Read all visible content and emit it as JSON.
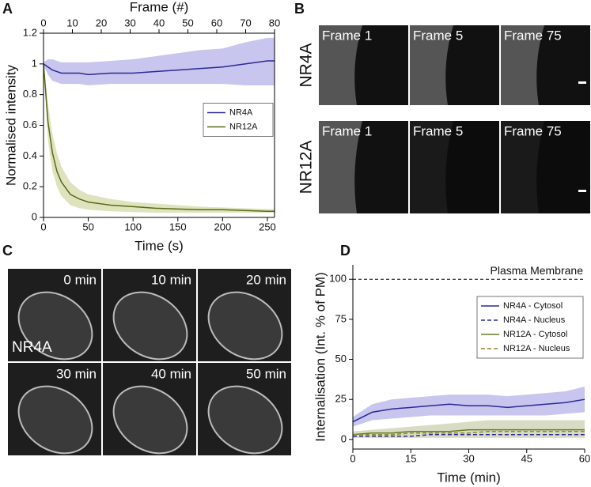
{
  "panel_labels": [
    "A",
    "B",
    "C",
    "D"
  ],
  "chart_data": [
    {
      "type": "line",
      "x_label": "Time (s)",
      "y_label": "Normalised intensity",
      "x2_label": "Frame (#)",
      "x": [
        0,
        5,
        10,
        15,
        20,
        30,
        40,
        50,
        75,
        100,
        125,
        150,
        175,
        200,
        225,
        250,
        258
      ],
      "xlim": [
        0,
        258
      ],
      "xticks": [
        0,
        50,
        100,
        150,
        200,
        250
      ],
      "x2lim": [
        0,
        80
      ],
      "x2ticks": [
        0,
        10,
        20,
        30,
        40,
        50,
        60,
        70,
        80
      ],
      "ylim": [
        0,
        1.2
      ],
      "yticks": [
        0,
        0.2,
        0.4,
        0.6,
        0.8,
        1,
        1.2
      ],
      "legend": "center right",
      "frame": true,
      "series": [
        {
          "name": "NR4A",
          "color": "#2a2a96",
          "band_color": "#c8c5ee",
          "dashed": false,
          "values": [
            1.0,
            0.98,
            0.96,
            0.95,
            0.94,
            0.94,
            0.94,
            0.93,
            0.94,
            0.94,
            0.95,
            0.96,
            0.97,
            0.98,
            1.0,
            1.02,
            1.02
          ],
          "lower": [
            0.99,
            0.93,
            0.89,
            0.88,
            0.87,
            0.87,
            0.87,
            0.86,
            0.87,
            0.87,
            0.87,
            0.87,
            0.87,
            0.87,
            0.86,
            0.86,
            0.86
          ],
          "upper": [
            1.01,
            1.03,
            1.03,
            1.02,
            1.01,
            1.01,
            1.01,
            1.01,
            1.02,
            1.03,
            1.05,
            1.07,
            1.09,
            1.1,
            1.14,
            1.17,
            1.17
          ]
        },
        {
          "name": "NR12A",
          "color": "#5a6a18",
          "band_color": "#dfe3bd",
          "dashed": false,
          "values": [
            1.0,
            0.62,
            0.42,
            0.3,
            0.23,
            0.15,
            0.12,
            0.1,
            0.08,
            0.07,
            0.06,
            0.055,
            0.05,
            0.05,
            0.045,
            0.04,
            0.04
          ],
          "lower": [
            0.99,
            0.5,
            0.3,
            0.2,
            0.14,
            0.08,
            0.06,
            0.05,
            0.04,
            0.035,
            0.03,
            0.03,
            0.03,
            0.03,
            0.03,
            0.03,
            0.03
          ],
          "upper": [
            1.01,
            0.74,
            0.54,
            0.42,
            0.33,
            0.23,
            0.18,
            0.15,
            0.12,
            0.1,
            0.09,
            0.08,
            0.07,
            0.065,
            0.06,
            0.055,
            0.055
          ]
        }
      ]
    },
    {
      "type": "line",
      "x_label": "Time (min)",
      "y_label": "Internalisation (Int. % of PM)",
      "x": [
        0,
        5,
        10,
        15,
        20,
        25,
        30,
        35,
        40,
        45,
        50,
        55,
        60
      ],
      "xlim": [
        0,
        60
      ],
      "xticks": [
        0,
        15,
        30,
        45,
        60
      ],
      "ylim": [
        -6,
        109
      ],
      "yticks": [
        0,
        25,
        50,
        75,
        100
      ],
      "legend": "upper right",
      "frame": false,
      "hline": {
        "value": 100,
        "label": "Plasma Membrane"
      },
      "series": [
        {
          "name": "NR4A - Cytosol",
          "color": "#2a2a96",
          "band_color": "#c8c5ee",
          "dashed": false,
          "values": [
            11,
            17,
            19,
            20,
            21,
            22,
            21,
            21,
            20,
            21,
            22,
            23,
            25
          ],
          "lower": [
            8,
            12,
            13,
            14,
            15,
            15,
            15,
            15,
            15,
            15,
            15,
            16,
            17
          ],
          "upper": [
            14,
            22,
            25,
            26,
            27,
            28,
            28,
            28,
            27,
            28,
            29,
            30,
            33
          ]
        },
        {
          "name": "NR4A - Nucleus",
          "color": "#2a2a96",
          "dashed": true,
          "values": [
            2,
            2,
            2,
            2,
            3,
            3,
            3,
            3,
            3,
            3,
            3,
            3,
            3
          ]
        },
        {
          "name": "NR12A - Cytosol",
          "color": "#6b7a22",
          "band_color": "#d9dcc4",
          "dashed": false,
          "values": [
            3,
            4,
            4,
            5,
            5,
            5,
            6,
            6,
            6,
            6,
            6,
            6,
            6
          ],
          "lower": [
            1,
            1,
            1,
            1,
            1,
            1,
            1,
            1,
            1,
            1,
            1,
            1,
            1
          ],
          "upper": [
            5,
            6,
            7,
            8,
            9,
            10,
            11,
            12,
            12,
            12,
            12,
            12,
            12
          ]
        },
        {
          "name": "NR12A - Nucleus",
          "color": "#8a8a30",
          "dashed": true,
          "values": [
            3,
            3,
            3,
            4,
            4,
            4,
            4,
            5,
            5,
            5,
            5,
            5,
            5
          ]
        }
      ]
    }
  ],
  "image_panels": {
    "B": {
      "columns": [
        "Frame 1",
        "Frame 5",
        "Frame 75"
      ],
      "rows": [
        "NR4A",
        "NR12A"
      ]
    },
    "C": {
      "times": [
        "0 min",
        "10 min",
        "20 min",
        "30 min",
        "40 min",
        "50 min"
      ],
      "label": "NR4A"
    }
  }
}
